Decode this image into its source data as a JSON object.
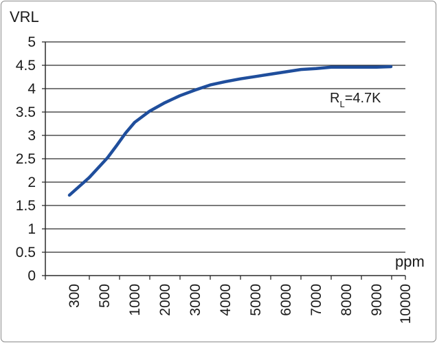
{
  "chart_data": {
    "type": "line",
    "title": "",
    "ylabel": "VRL",
    "xlabel": "ppm",
    "ylim": [
      0,
      5
    ],
    "y_ticks": [
      "0",
      "0.5",
      "1",
      "1.5",
      "2",
      "2.5",
      "3",
      "3.5",
      "4",
      "4.5",
      "5"
    ],
    "categories": [
      "300",
      "500",
      "1000",
      "2000",
      "3000",
      "4000",
      "5000",
      "6000",
      "7000",
      "8000",
      "9000",
      "10000"
    ],
    "grid": true,
    "line_color": "#1f4e9c",
    "series": [
      {
        "x": [
          250,
          400,
          550,
          700,
          850,
          1000,
          1500,
          2000,
          2500,
          3000,
          3500,
          4000,
          4500,
          5000,
          5500,
          6000,
          6500,
          7000,
          7500,
          8000,
          8500,
          9000,
          9500
        ],
        "values": [
          1.72,
          2.1,
          2.52,
          2.78,
          3.05,
          3.28,
          3.52,
          3.7,
          3.85,
          3.97,
          4.08,
          4.15,
          4.21,
          4.26,
          4.31,
          4.36,
          4.41,
          4.43,
          4.46,
          4.46,
          4.46,
          4.46,
          4.47
        ]
      }
    ],
    "annotation": {
      "main": "R",
      "sub": "L",
      "rest": "=4.7K"
    }
  }
}
